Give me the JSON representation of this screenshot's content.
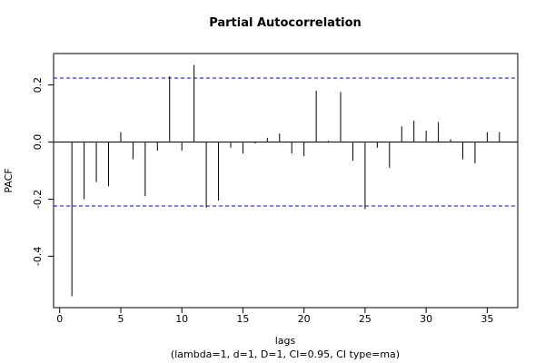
{
  "chart_data": {
    "type": "bar",
    "title": "Partial Autocorrelation",
    "xlabel": "lags",
    "subtitle": "(lambda=1, d=1, D=1, CI=0.95, CI type=ma)",
    "ylabel": "PACF",
    "xlim": [
      -0.5,
      37.5
    ],
    "ylim": [
      -0.58,
      0.31
    ],
    "x_ticks": [
      "0",
      "5",
      "10",
      "15",
      "20",
      "25",
      "30",
      "35"
    ],
    "y_ticks": [
      "-0.4",
      "-0.2",
      "0.0",
      "0.2"
    ],
    "confidence_limits": [
      0.224,
      -0.224
    ],
    "confidence_color": "#0000ff",
    "lags": [
      1,
      2,
      3,
      4,
      5,
      6,
      7,
      8,
      9,
      10,
      11,
      12,
      13,
      14,
      15,
      16,
      17,
      18,
      19,
      20,
      21,
      22,
      23,
      24,
      25,
      26,
      27,
      28,
      29,
      30,
      31,
      32,
      33,
      34,
      35,
      36
    ],
    "values": [
      -0.54,
      -0.2,
      -0.14,
      -0.155,
      0.035,
      -0.06,
      -0.19,
      -0.03,
      0.23,
      -0.03,
      0.27,
      -0.23,
      -0.205,
      -0.02,
      -0.04,
      -0.005,
      0.015,
      0.03,
      -0.04,
      -0.05,
      0.18,
      0.005,
      0.175,
      -0.065,
      -0.235,
      -0.02,
      -0.09,
      0.055,
      0.075,
      0.04,
      0.07,
      0.01,
      -0.06,
      -0.075,
      0.035,
      0.035
    ]
  }
}
